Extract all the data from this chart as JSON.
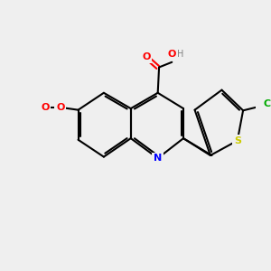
{
  "background_color": "#efefef",
  "bond_color": "#000000",
  "bond_width": 1.5,
  "atom_colors": {
    "O": "#ff0000",
    "N": "#0000ff",
    "S": "#cccc00",
    "Cl": "#00aa00",
    "C": "#000000",
    "H": "#808080"
  },
  "font_size": 7.5
}
